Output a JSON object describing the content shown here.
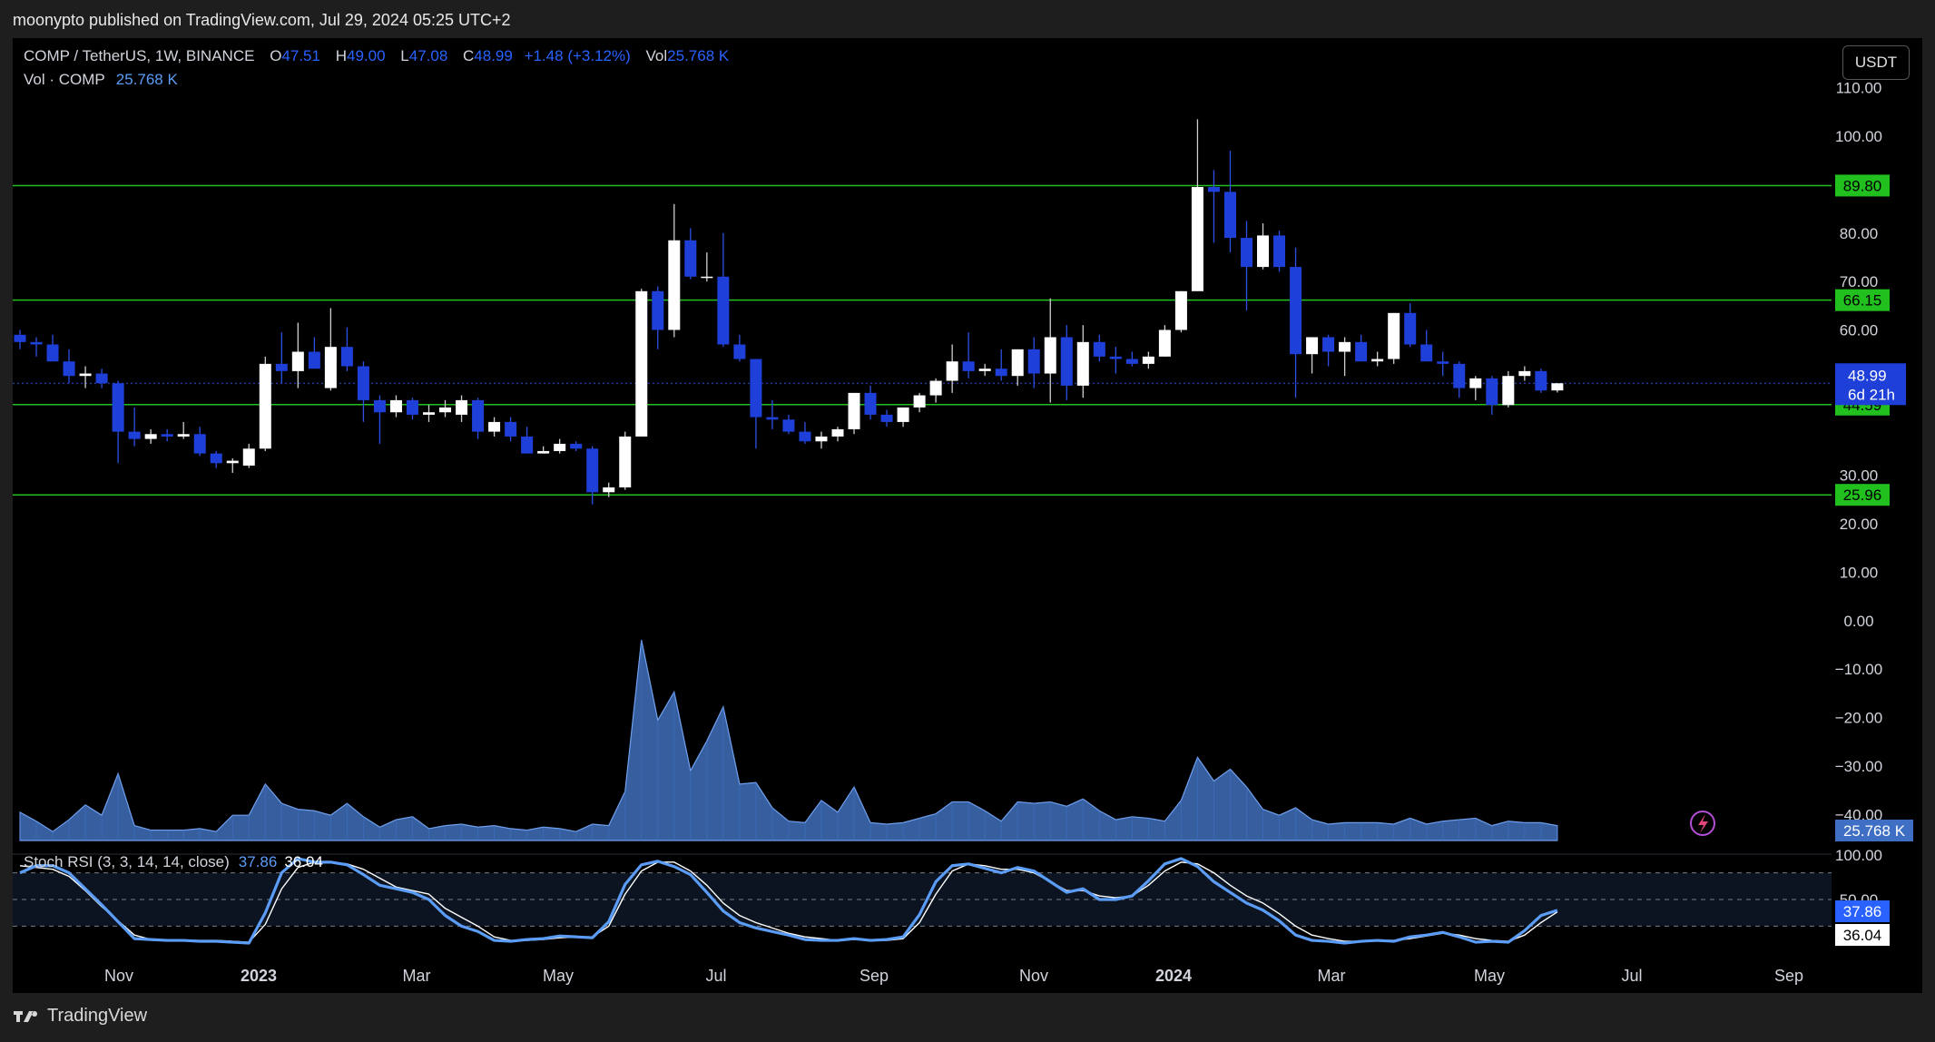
{
  "header": {
    "publish_line": "moonypto published on TradingView.com, Jul 29, 2024 05:25 UTC+2"
  },
  "legend": {
    "symbol": "COMP / TetherUS, 1W, BINANCE",
    "o_label": "O",
    "o_value": "47.51",
    "h_label": "H",
    "h_value": "49.00",
    "l_label": "L",
    "l_value": "47.08",
    "c_label": "C",
    "c_value": "48.99",
    "change": "+1.48 (+3.12%)",
    "vol_label": "Vol",
    "vol_value": "25.768 K",
    "vol_series_label": "Vol · COMP",
    "vol_series_value": "25.768 K",
    "stoch_label": "Stoch RSI (3, 3, 14, 14, close)",
    "stoch_k": "37.86",
    "stoch_d": "36.04"
  },
  "currency_button": "USDT",
  "footer": {
    "brand": "TradingView"
  },
  "colors": {
    "bull": "#ffffff",
    "bear": "#1f3fd9",
    "level_line": "#22c01e",
    "volume": "#4a7fd4",
    "stoch_k": "#5b9cf6",
    "stoch_d": "#ffffff"
  },
  "chart_data": [
    {
      "type": "candlestick",
      "timeframe": "1W",
      "price_scale_labels": [
        "110.00",
        "100.00",
        "80.00",
        "70.00",
        "60.00",
        "30.00",
        "20.00",
        "10.00",
        "0.00",
        "−10.00",
        "−20.00",
        "−30.00",
        "−40.00"
      ],
      "x_tick_labels": [
        "Nov",
        "2023",
        "Mar",
        "May",
        "Jul",
        "Sep",
        "Nov",
        "2024",
        "Mar",
        "May",
        "Jul",
        "Sep"
      ],
      "horizontal_levels": [
        {
          "value": 89.8,
          "label": "89.80"
        },
        {
          "value": 66.15,
          "label": "66.15"
        },
        {
          "value": 44.59,
          "label": "44.59"
        },
        {
          "value": 25.96,
          "label": "25.96"
        }
      ],
      "last_price": {
        "value": 48.99,
        "label": "48.99",
        "countdown": "6d 21h"
      },
      "candles": [
        {
          "o": 59.0,
          "h": 60.0,
          "l": 56.0,
          "c": 57.5
        },
        {
          "o": 57.5,
          "h": 58.5,
          "l": 54.5,
          "c": 57.0
        },
        {
          "o": 57.0,
          "h": 59.0,
          "l": 53.5,
          "c": 53.5
        },
        {
          "o": 53.5,
          "h": 56.0,
          "l": 49.0,
          "c": 50.5
        },
        {
          "o": 50.5,
          "h": 52.5,
          "l": 48.0,
          "c": 51.0
        },
        {
          "o": 51.0,
          "h": 52.0,
          "l": 48.0,
          "c": 49.0
        },
        {
          "o": 49.0,
          "h": 49.5,
          "l": 32.5,
          "c": 39.0
        },
        {
          "o": 39.0,
          "h": 44.0,
          "l": 36.0,
          "c": 37.5
        },
        {
          "o": 37.5,
          "h": 39.5,
          "l": 36.5,
          "c": 38.5
        },
        {
          "o": 38.5,
          "h": 39.5,
          "l": 37.0,
          "c": 38.0
        },
        {
          "o": 38.0,
          "h": 41.0,
          "l": 37.5,
          "c": 38.5
        },
        {
          "o": 38.5,
          "h": 40.0,
          "l": 34.0,
          "c": 34.5
        },
        {
          "o": 34.5,
          "h": 35.0,
          "l": 31.5,
          "c": 32.5
        },
        {
          "o": 32.5,
          "h": 33.5,
          "l": 30.5,
          "c": 33.0
        },
        {
          "o": 32.0,
          "h": 36.5,
          "l": 31.5,
          "c": 35.5
        },
        {
          "o": 35.5,
          "h": 54.5,
          "l": 35.0,
          "c": 53.0
        },
        {
          "o": 53.0,
          "h": 59.5,
          "l": 49.0,
          "c": 51.5
        },
        {
          "o": 51.5,
          "h": 61.5,
          "l": 48.0,
          "c": 55.5
        },
        {
          "o": 55.5,
          "h": 58.5,
          "l": 52.0,
          "c": 52.0
        },
        {
          "o": 48.0,
          "h": 64.5,
          "l": 47.5,
          "c": 56.5
        },
        {
          "o": 56.5,
          "h": 60.5,
          "l": 51.5,
          "c": 52.5
        },
        {
          "o": 52.5,
          "h": 53.5,
          "l": 41.0,
          "c": 45.5
        },
        {
          "o": 45.5,
          "h": 46.5,
          "l": 36.5,
          "c": 43.0
        },
        {
          "o": 43.0,
          "h": 46.5,
          "l": 42.0,
          "c": 45.5
        },
        {
          "o": 45.5,
          "h": 46.0,
          "l": 41.5,
          "c": 42.5
        },
        {
          "o": 42.5,
          "h": 44.5,
          "l": 41.0,
          "c": 43.0
        },
        {
          "o": 43.0,
          "h": 45.5,
          "l": 42.0,
          "c": 44.0
        },
        {
          "o": 42.5,
          "h": 46.5,
          "l": 41.0,
          "c": 45.5
        },
        {
          "o": 45.5,
          "h": 46.0,
          "l": 37.5,
          "c": 39.0
        },
        {
          "o": 39.0,
          "h": 42.0,
          "l": 38.0,
          "c": 41.0
        },
        {
          "o": 41.0,
          "h": 42.0,
          "l": 37.0,
          "c": 38.0
        },
        {
          "o": 38.0,
          "h": 40.0,
          "l": 34.5,
          "c": 34.5
        },
        {
          "o": 34.5,
          "h": 36.0,
          "l": 34.5,
          "c": 35.0
        },
        {
          "o": 35.0,
          "h": 37.5,
          "l": 34.5,
          "c": 36.5
        },
        {
          "o": 36.5,
          "h": 37.0,
          "l": 35.0,
          "c": 35.5
        },
        {
          "o": 35.5,
          "h": 36.0,
          "l": 24.0,
          "c": 26.5
        },
        {
          "o": 26.5,
          "h": 28.5,
          "l": 25.5,
          "c": 27.5
        },
        {
          "o": 27.5,
          "h": 39.0,
          "l": 27.0,
          "c": 38.0
        },
        {
          "o": 38.0,
          "h": 68.5,
          "l": 38.0,
          "c": 68.0
        },
        {
          "o": 68.0,
          "h": 69.0,
          "l": 56.0,
          "c": 60.0
        },
        {
          "o": 60.0,
          "h": 86.0,
          "l": 58.5,
          "c": 78.5
        },
        {
          "o": 78.5,
          "h": 81.0,
          "l": 70.5,
          "c": 71.0
        },
        {
          "o": 71.0,
          "h": 76.0,
          "l": 70.0,
          "c": 71.0
        },
        {
          "o": 71.0,
          "h": 80.0,
          "l": 56.5,
          "c": 57.0
        },
        {
          "o": 57.0,
          "h": 59.0,
          "l": 53.5,
          "c": 54.0
        },
        {
          "o": 54.0,
          "h": 54.0,
          "l": 35.5,
          "c": 42.0
        },
        {
          "o": 42.0,
          "h": 45.5,
          "l": 39.5,
          "c": 41.5
        },
        {
          "o": 41.5,
          "h": 42.5,
          "l": 38.5,
          "c": 39.0
        },
        {
          "o": 39.0,
          "h": 41.0,
          "l": 36.5,
          "c": 37.0
        },
        {
          "o": 37.0,
          "h": 39.0,
          "l": 35.5,
          "c": 38.0
        },
        {
          "o": 38.0,
          "h": 40.0,
          "l": 37.0,
          "c": 39.5
        },
        {
          "o": 39.5,
          "h": 47.0,
          "l": 38.5,
          "c": 47.0
        },
        {
          "o": 47.0,
          "h": 48.5,
          "l": 41.5,
          "c": 42.5
        },
        {
          "o": 42.5,
          "h": 43.5,
          "l": 40.0,
          "c": 41.0
        },
        {
          "o": 41.0,
          "h": 44.0,
          "l": 40.0,
          "c": 44.0
        },
        {
          "o": 44.0,
          "h": 47.0,
          "l": 43.0,
          "c": 46.5
        },
        {
          "o": 46.5,
          "h": 50.0,
          "l": 45.0,
          "c": 49.5
        },
        {
          "o": 49.5,
          "h": 57.0,
          "l": 47.0,
          "c": 53.5
        },
        {
          "o": 53.5,
          "h": 59.5,
          "l": 50.0,
          "c": 51.5
        },
        {
          "o": 51.5,
          "h": 53.0,
          "l": 50.5,
          "c": 52.0
        },
        {
          "o": 52.0,
          "h": 56.0,
          "l": 49.5,
          "c": 50.5
        },
        {
          "o": 50.5,
          "h": 56.0,
          "l": 48.5,
          "c": 56.0
        },
        {
          "o": 56.0,
          "h": 58.5,
          "l": 48.0,
          "c": 51.0
        },
        {
          "o": 51.0,
          "h": 66.5,
          "l": 45.0,
          "c": 58.5
        },
        {
          "o": 58.5,
          "h": 61.0,
          "l": 45.5,
          "c": 48.5
        },
        {
          "o": 48.5,
          "h": 61.0,
          "l": 46.0,
          "c": 57.5
        },
        {
          "o": 57.5,
          "h": 59.0,
          "l": 53.5,
          "c": 54.5
        },
        {
          "o": 54.5,
          "h": 56.5,
          "l": 51.0,
          "c": 54.0
        },
        {
          "o": 54.0,
          "h": 55.5,
          "l": 52.5,
          "c": 53.0
        },
        {
          "o": 53.0,
          "h": 55.5,
          "l": 52.0,
          "c": 54.5
        },
        {
          "o": 54.5,
          "h": 61.0,
          "l": 54.5,
          "c": 60.0
        },
        {
          "o": 60.0,
          "h": 68.0,
          "l": 59.5,
          "c": 68.0
        },
        {
          "o": 68.0,
          "h": 103.5,
          "l": 68.0,
          "c": 89.5
        },
        {
          "o": 89.5,
          "h": 93.0,
          "l": 78.0,
          "c": 88.5
        },
        {
          "o": 88.5,
          "h": 97.0,
          "l": 76.0,
          "c": 79.0
        },
        {
          "o": 79.0,
          "h": 82.5,
          "l": 64.0,
          "c": 73.0
        },
        {
          "o": 73.0,
          "h": 82.0,
          "l": 72.5,
          "c": 79.5
        },
        {
          "o": 79.5,
          "h": 80.5,
          "l": 72.0,
          "c": 73.0
        },
        {
          "o": 73.0,
          "h": 77.0,
          "l": 46.0,
          "c": 55.0
        },
        {
          "o": 55.0,
          "h": 58.5,
          "l": 51.0,
          "c": 58.5
        },
        {
          "o": 58.5,
          "h": 59.0,
          "l": 52.5,
          "c": 55.5
        },
        {
          "o": 55.5,
          "h": 58.5,
          "l": 50.5,
          "c": 57.5
        },
        {
          "o": 57.5,
          "h": 59.0,
          "l": 53.5,
          "c": 53.5
        },
        {
          "o": 53.5,
          "h": 55.5,
          "l": 52.5,
          "c": 54.0
        },
        {
          "o": 54.0,
          "h": 63.5,
          "l": 53.0,
          "c": 63.5
        },
        {
          "o": 63.5,
          "h": 65.5,
          "l": 56.5,
          "c": 57.0
        },
        {
          "o": 57.0,
          "h": 60.0,
          "l": 53.5,
          "c": 53.5
        },
        {
          "o": 53.5,
          "h": 55.5,
          "l": 50.5,
          "c": 53.0
        },
        {
          "o": 53.0,
          "h": 53.5,
          "l": 46.0,
          "c": 48.0
        },
        {
          "o": 48.0,
          "h": 50.5,
          "l": 45.5,
          "c": 50.0
        },
        {
          "o": 50.0,
          "h": 50.5,
          "l": 42.5,
          "c": 44.5
        },
        {
          "o": 44.5,
          "h": 51.5,
          "l": 44.0,
          "c": 50.5
        },
        {
          "o": 50.5,
          "h": 52.5,
          "l": 49.5,
          "c": 51.5
        },
        {
          "o": 51.5,
          "h": 52.0,
          "l": 47.0,
          "c": 47.5
        },
        {
          "o": 47.51,
          "h": 49.0,
          "l": 47.08,
          "c": 48.99
        }
      ]
    },
    {
      "type": "area",
      "name": "Vol · COMP",
      "last_label": "25.768 K",
      "values": [
        19,
        13,
        6,
        14,
        24,
        17,
        45,
        10,
        7,
        7,
        7,
        8,
        6,
        17,
        17,
        38,
        25,
        21,
        20,
        17,
        25,
        16,
        9,
        14,
        16,
        8,
        10,
        11,
        9,
        10,
        8,
        7,
        9,
        8,
        6,
        11,
        10,
        33,
        135,
        81,
        100,
        47,
        67,
        90,
        38,
        39,
        22,
        13,
        12,
        27,
        19,
        36,
        12,
        11,
        12,
        15,
        18,
        26,
        26,
        20,
        13,
        26,
        25,
        26,
        23,
        28,
        20,
        14,
        16,
        15,
        13,
        27,
        56,
        40,
        48,
        36,
        21,
        17,
        22,
        14,
        11,
        12,
        12,
        12,
        11,
        15,
        11,
        13,
        14,
        15,
        10,
        13,
        12,
        12,
        10
      ]
    },
    {
      "type": "line",
      "name": "Stoch RSI (3, 3, 14, 14, close)",
      "y_tick_labels": [
        "100.00",
        "50.00"
      ],
      "bands": [
        80,
        50,
        20
      ],
      "k": [
        80,
        88,
        88,
        80,
        62,
        44,
        25,
        6,
        5,
        4,
        4,
        3,
        3,
        2,
        1,
        35,
        80,
        96,
        92,
        92,
        89,
        78,
        66,
        62,
        58,
        50,
        32,
        20,
        14,
        4,
        3,
        5,
        6,
        9,
        8,
        7,
        25,
        67,
        89,
        93,
        87,
        78,
        58,
        37,
        24,
        18,
        14,
        10,
        5,
        4,
        4,
        6,
        4,
        5,
        8,
        33,
        70,
        88,
        90,
        85,
        80,
        86,
        82,
        70,
        58,
        62,
        50,
        50,
        54,
        71,
        90,
        96,
        87,
        70,
        58,
        46,
        38,
        26,
        10,
        4,
        3,
        1,
        3,
        4,
        3,
        8,
        10,
        13,
        8,
        2,
        3,
        2,
        15,
        32,
        37.86
      ],
      "d": [
        88,
        86,
        84,
        76,
        60,
        42,
        26,
        10,
        5,
        4,
        4,
        4,
        4,
        3,
        2,
        22,
        62,
        86,
        92,
        92,
        90,
        84,
        74,
        64,
        60,
        56,
        40,
        30,
        20,
        8,
        4,
        4,
        5,
        7,
        8,
        8,
        20,
        56,
        82,
        92,
        92,
        82,
        66,
        46,
        32,
        24,
        18,
        12,
        8,
        6,
        4,
        5,
        4,
        4,
        6,
        24,
        56,
        82,
        90,
        88,
        84,
        84,
        80,
        70,
        60,
        60,
        54,
        52,
        54,
        66,
        82,
        92,
        90,
        80,
        66,
        54,
        46,
        34,
        20,
        10,
        6,
        3,
        3,
        4,
        4,
        6,
        9,
        12,
        10,
        6,
        4,
        3,
        10,
        24,
        36.04
      ]
    }
  ]
}
